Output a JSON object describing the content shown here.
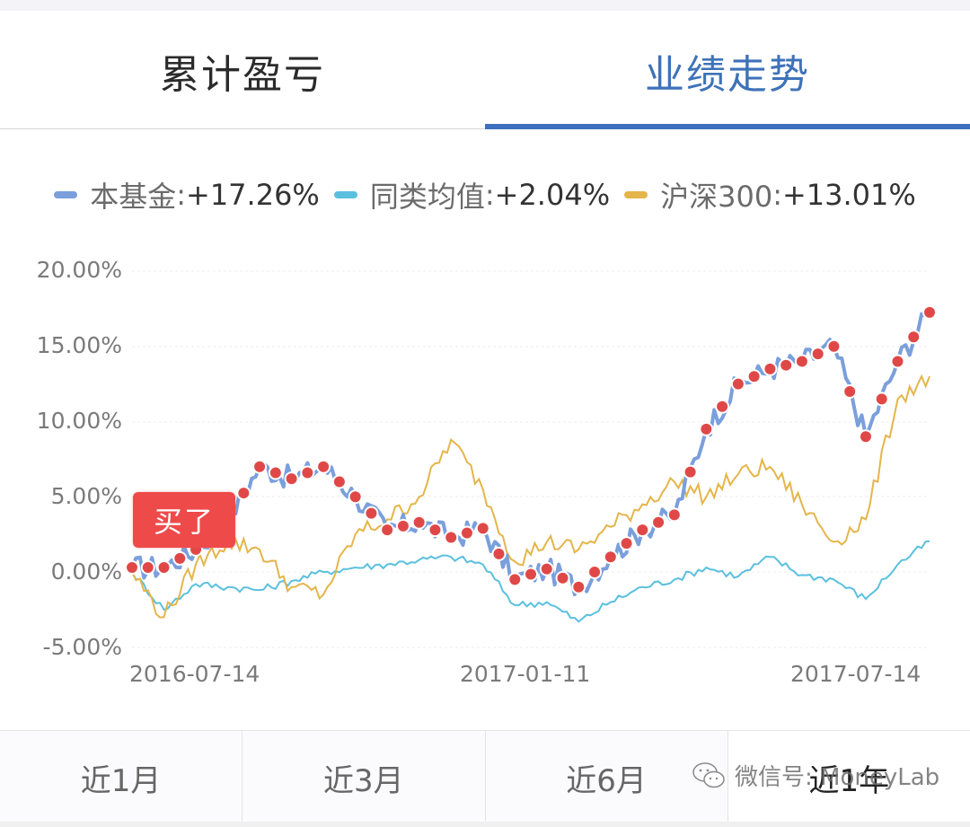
{
  "tabs": [
    {
      "label": "累计盈亏",
      "active": false
    },
    {
      "label": "业绩走势",
      "active": true
    }
  ],
  "legend": [
    {
      "name": "本基金",
      "sep": ": ",
      "value": "+17.26%",
      "color": "#7a9fdc"
    },
    {
      "name": "同类均值",
      "sep": ": ",
      "value": "+2.04%",
      "color": "#5bc0de"
    },
    {
      "name": "沪深300",
      "sep": ": ",
      "value": "+13.01%",
      "color": "#e4b54a"
    }
  ],
  "y_ticks": [
    "20.00%",
    "15.00%",
    "10.00%",
    "5.00%",
    "0.00%",
    "-5.00%"
  ],
  "x_ticks": [
    "2016-07-14",
    "2017-01-11",
    "2017-07-14"
  ],
  "annotation": {
    "label": "买了",
    "color": "#ee4a4a"
  },
  "period_tabs": [
    {
      "label": "近1月",
      "active": false
    },
    {
      "label": "近3月",
      "active": false
    },
    {
      "label": "近6月",
      "active": false
    },
    {
      "label": "近1年",
      "active": true
    }
  ],
  "watermark": {
    "text": "微信号: MoneyLab"
  },
  "chart_data": {
    "type": "line",
    "title": "业绩走势",
    "xlabel": "",
    "ylabel": "",
    "ylim": [
      -5,
      20
    ],
    "y_tick_values": [
      20,
      15,
      10,
      5,
      0,
      -5
    ],
    "x_tick_labels": [
      "2016-07-14",
      "2017-01-11",
      "2017-07-14"
    ],
    "grid": true,
    "legend_position": "top",
    "x": [
      "2016-07-14",
      "2016-07-28",
      "2016-08-11",
      "2016-08-25",
      "2016-09-08",
      "2016-09-22",
      "2016-10-13",
      "2016-10-27",
      "2016-11-10",
      "2016-11-24",
      "2016-12-08",
      "2016-12-22",
      "2017-01-11",
      "2017-01-25",
      "2017-02-15",
      "2017-03-01",
      "2017-03-15",
      "2017-03-29",
      "2017-04-13",
      "2017-04-27",
      "2017-05-11",
      "2017-05-25",
      "2017-06-08",
      "2017-06-22",
      "2017-07-06",
      "2017-07-14"
    ],
    "series": [
      {
        "name": "本基金",
        "final": 17.26,
        "color": "#7a9fdc",
        "values": [
          0.3,
          0.3,
          1.5,
          3.5,
          7.0,
          6.2,
          7.0,
          5.0,
          2.8,
          3.3,
          2.3,
          2.9,
          -0.5,
          0.2,
          -1.0,
          1.0,
          2.8,
          3.8,
          9.5,
          12.5,
          13.5,
          14.0,
          15.0,
          9.0,
          14.0,
          17.26
        ]
      },
      {
        "name": "同类均值",
        "final": 2.04,
        "color": "#5bc0de",
        "values": [
          0.0,
          -2.5,
          -0.8,
          -1.0,
          -1.2,
          -0.6,
          0.0,
          0.3,
          0.5,
          0.8,
          1.0,
          0.5,
          -2.2,
          -2.0,
          -3.3,
          -2.0,
          -1.0,
          -0.5,
          0.3,
          -0.3,
          1.0,
          -0.2,
          -0.5,
          -1.8,
          0.5,
          2.04
        ]
      },
      {
        "name": "沪深300",
        "final": 13.01,
        "color": "#e4b54a",
        "values": [
          0.0,
          -3.0,
          0.5,
          2.0,
          1.5,
          -1.0,
          -1.5,
          2.5,
          3.5,
          5.0,
          8.8,
          5.5,
          0.7,
          2.0,
          1.5,
          3.0,
          4.5,
          6.0,
          5.0,
          6.5,
          7.0,
          4.5,
          2.0,
          3.5,
          11.5,
          13.01
        ]
      }
    ],
    "markers": {
      "series": "本基金",
      "color": "#e04848",
      "note": "red dots mark buy points"
    }
  }
}
